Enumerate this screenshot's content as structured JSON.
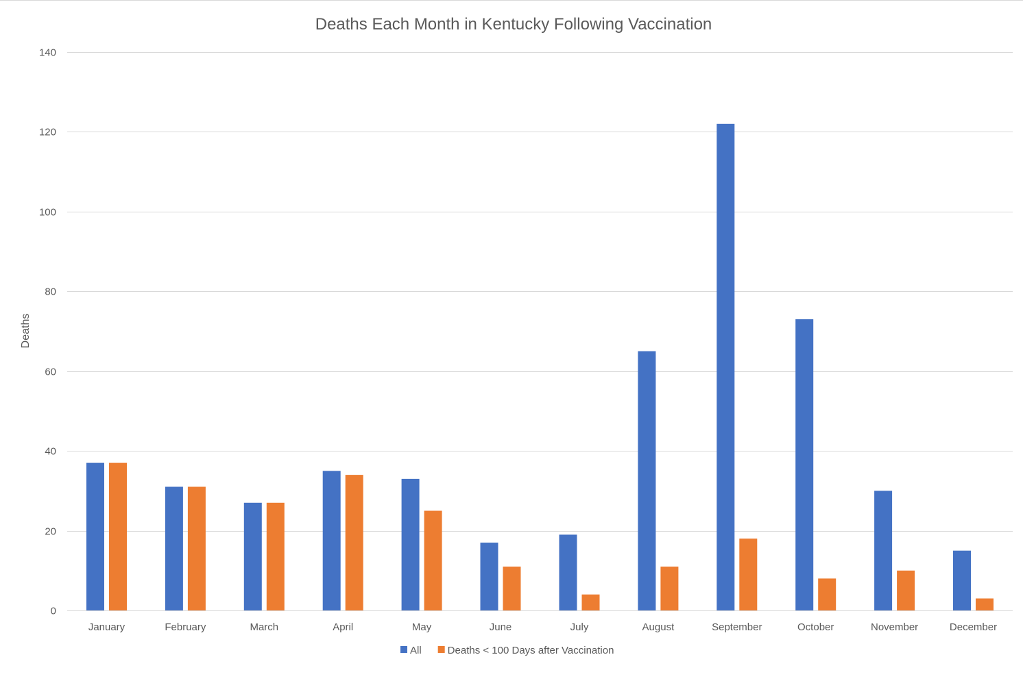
{
  "chart_data": {
    "type": "bar",
    "title": "Deaths Each Month in Kentucky Following Vaccination",
    "xlabel": "",
    "ylabel": "Deaths",
    "ylim": [
      0,
      140
    ],
    "yticks": [
      0,
      20,
      40,
      60,
      80,
      100,
      120,
      140
    ],
    "grid": true,
    "legend_position": "bottom",
    "categories": [
      "January",
      "February",
      "March",
      "April",
      "May",
      "June",
      "July",
      "August",
      "September",
      "October",
      "November",
      "December"
    ],
    "series": [
      {
        "name": "All",
        "color": "#4472C4",
        "values": [
          37,
          31,
          27,
          35,
          33,
          17,
          19,
          65,
          122,
          73,
          30,
          15
        ]
      },
      {
        "name": "Deaths < 100 Days after Vaccination",
        "color": "#ED7D31",
        "values": [
          37,
          31,
          27,
          34,
          25,
          11,
          4,
          11,
          18,
          8,
          10,
          3
        ]
      }
    ]
  }
}
